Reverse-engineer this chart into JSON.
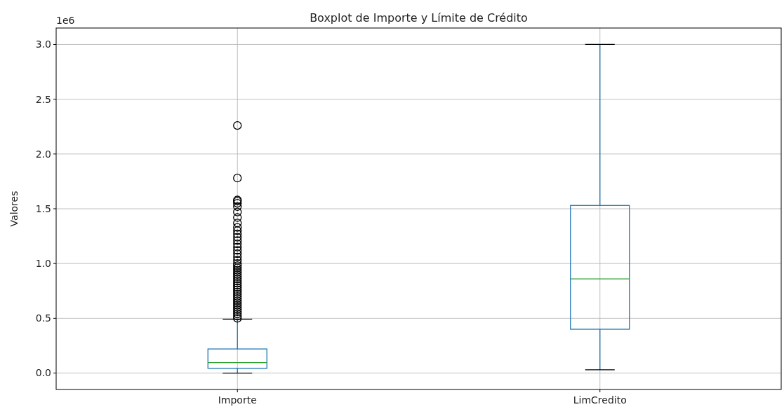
{
  "chart_data": {
    "type": "box",
    "title": "Boxplot de Importe y Límite de Crédito",
    "ylabel": "Valores",
    "annotations": [
      "1e6"
    ],
    "categories": [
      "Importe",
      "LimCredito"
    ],
    "ylim": [
      -0.15,
      3.15
    ],
    "yticks": [
      {
        "value": 0,
        "label": "0.0"
      },
      0.5,
      {
        "value": 1,
        "label": "1.0"
      },
      1.5,
      {
        "value": 2,
        "label": "2.0"
      },
      2.5,
      {
        "value": 3,
        "label": "3.0"
      }
    ],
    "grid": true,
    "series": [
      {
        "color": "#1f77b4",
        "boxes": [
          {
            "low": 0,
            "q1": 0.043,
            "median": 0.096,
            "q3": 0.22,
            "high": 0.49,
            "outliers": [
              0.5,
              0.52,
              0.54,
              0.56,
              0.58,
              0.6,
              0.62,
              0.64,
              0.66,
              0.68,
              0.7,
              0.72,
              0.74,
              0.76,
              0.78,
              0.8,
              0.82,
              0.84,
              0.86,
              0.88,
              0.9,
              0.92,
              0.94,
              0.96,
              0.98,
              1.0,
              1.03,
              1.06,
              1.09,
              1.12,
              1.15,
              1.18,
              1.21,
              1.24,
              1.27,
              1.3,
              1.33,
              1.37,
              1.42,
              1.47,
              1.52,
              1.55,
              1.57,
              1.58,
              1.78,
              2.26
            ]
          },
          {
            "low": 0.03,
            "q1": 0.4,
            "median": 0.86,
            "q3": 1.53,
            "high": 3.0
          }
        ]
      }
    ]
  }
}
